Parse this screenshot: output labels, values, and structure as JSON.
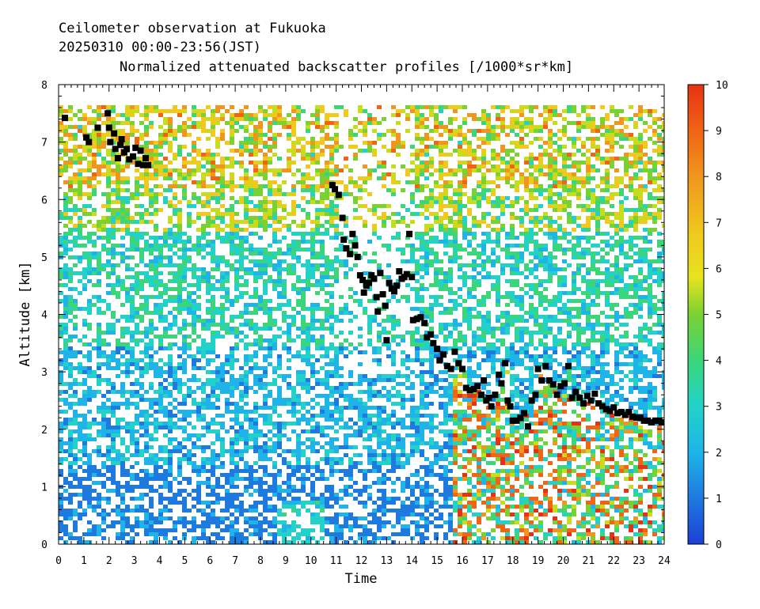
{
  "chart_data": {
    "type": "heatmap",
    "title_line1": "Ceilometer observation at Fukuoka",
    "title_line2": "20250310  00:00-23:56(JST)",
    "title_line3": "Normalized attenuated backscatter profiles [/1000*sr*km]",
    "xlabel": "Time",
    "ylabel": "Altitude [km]",
    "xlim": [
      0,
      24
    ],
    "ylim": [
      0,
      8
    ],
    "x_ticks": [
      "0",
      "1",
      "2",
      "3",
      "4",
      "5",
      "6",
      "7",
      "8",
      "9",
      "10",
      "11",
      "12",
      "13",
      "14",
      "15",
      "16",
      "17",
      "18",
      "19",
      "20",
      "21",
      "22",
      "23",
      "24"
    ],
    "y_ticks": [
      "0",
      "1",
      "2",
      "3",
      "4",
      "5",
      "6",
      "7",
      "8"
    ],
    "colorbar": {
      "range": [
        0,
        10
      ],
      "ticks": [
        "0",
        "1",
        "2",
        "3",
        "4",
        "5",
        "6",
        "7",
        "8",
        "9",
        "10"
      ],
      "colors": [
        "#1a3fd6",
        "#1f7ae0",
        "#1eb4e8",
        "#22d2c8",
        "#3cd67a",
        "#7ad232",
        "#c8dc1e",
        "#f0c81e",
        "#f0961e",
        "#f06414",
        "#e63214"
      ]
    },
    "data_top_altitude_km": 7.65,
    "cloud_base_series": {
      "name": "cloud base",
      "color": "#000000",
      "points": [
        [
          0.25,
          7.42
        ],
        [
          1.1,
          7.08
        ],
        [
          1.2,
          7.0
        ],
        [
          1.55,
          7.25
        ],
        [
          1.95,
          7.5
        ],
        [
          2.0,
          7.25
        ],
        [
          2.05,
          7.0
        ],
        [
          2.2,
          7.15
        ],
        [
          2.25,
          6.88
        ],
        [
          2.35,
          6.72
        ],
        [
          2.45,
          6.95
        ],
        [
          2.5,
          7.05
        ],
        [
          2.6,
          6.82
        ],
        [
          2.7,
          6.88
        ],
        [
          2.8,
          6.7
        ],
        [
          2.95,
          6.75
        ],
        [
          3.05,
          6.9
        ],
        [
          3.15,
          6.62
        ],
        [
          3.25,
          6.85
        ],
        [
          3.35,
          6.6
        ],
        [
          3.45,
          6.72
        ],
        [
          3.55,
          6.6
        ],
        [
          10.85,
          6.25
        ],
        [
          10.95,
          6.18
        ],
        [
          11.1,
          6.08
        ],
        [
          11.25,
          5.68
        ],
        [
          11.3,
          5.3
        ],
        [
          11.4,
          5.15
        ],
        [
          11.55,
          5.05
        ],
        [
          11.65,
          5.4
        ],
        [
          11.75,
          5.2
        ],
        [
          11.85,
          5.0
        ],
        [
          11.95,
          4.68
        ],
        [
          12.05,
          4.6
        ],
        [
          12.1,
          4.38
        ],
        [
          12.2,
          4.5
        ],
        [
          12.3,
          4.55
        ],
        [
          12.4,
          4.68
        ],
        [
          12.5,
          4.62
        ],
        [
          12.6,
          4.3
        ],
        [
          12.65,
          4.05
        ],
        [
          12.75,
          4.72
        ],
        [
          12.85,
          4.35
        ],
        [
          12.95,
          4.15
        ],
        [
          13.0,
          3.55
        ],
        [
          13.1,
          4.55
        ],
        [
          13.2,
          4.45
        ],
        [
          13.3,
          4.4
        ],
        [
          13.4,
          4.5
        ],
        [
          13.5,
          4.75
        ],
        [
          13.6,
          4.62
        ],
        [
          13.7,
          4.65
        ],
        [
          13.8,
          4.7
        ],
        [
          13.9,
          5.4
        ],
        [
          14.0,
          4.65
        ],
        [
          14.05,
          3.9
        ],
        [
          14.2,
          3.92
        ],
        [
          14.35,
          3.95
        ],
        [
          14.5,
          3.85
        ],
        [
          14.6,
          3.6
        ],
        [
          14.75,
          3.65
        ],
        [
          14.85,
          3.5
        ],
        [
          15.0,
          3.4
        ],
        [
          15.1,
          3.2
        ],
        [
          15.25,
          3.3
        ],
        [
          15.4,
          3.1
        ],
        [
          15.55,
          3.05
        ],
        [
          15.7,
          3.35
        ],
        [
          15.85,
          3.15
        ],
        [
          16.0,
          3.05
        ],
        [
          16.15,
          2.72
        ],
        [
          16.3,
          2.68
        ],
        [
          16.45,
          2.7
        ],
        [
          16.6,
          2.75
        ],
        [
          16.75,
          2.6
        ],
        [
          16.85,
          2.85
        ],
        [
          16.95,
          2.5
        ],
        [
          17.05,
          2.55
        ],
        [
          17.15,
          2.4
        ],
        [
          17.3,
          2.6
        ],
        [
          17.45,
          2.95
        ],
        [
          17.55,
          2.8
        ],
        [
          17.7,
          3.15
        ],
        [
          17.8,
          2.5
        ],
        [
          17.9,
          2.4
        ],
        [
          18.0,
          2.15
        ],
        [
          18.15,
          2.15
        ],
        [
          18.3,
          2.2
        ],
        [
          18.45,
          2.28
        ],
        [
          18.6,
          2.05
        ],
        [
          18.75,
          2.5
        ],
        [
          18.9,
          2.6
        ],
        [
          19.0,
          3.05
        ],
        [
          19.15,
          2.85
        ],
        [
          19.3,
          3.1
        ],
        [
          19.45,
          2.85
        ],
        [
          19.6,
          2.78
        ],
        [
          19.75,
          2.6
        ],
        [
          19.9,
          2.75
        ],
        [
          20.05,
          2.8
        ],
        [
          20.2,
          3.1
        ],
        [
          20.35,
          2.55
        ],
        [
          20.5,
          2.65
        ],
        [
          20.65,
          2.55
        ],
        [
          20.8,
          2.45
        ],
        [
          20.95,
          2.58
        ],
        [
          21.1,
          2.5
        ],
        [
          21.25,
          2.62
        ],
        [
          21.4,
          2.45
        ],
        [
          21.55,
          2.4
        ],
        [
          21.7,
          2.35
        ],
        [
          21.85,
          2.32
        ],
        [
          22.0,
          2.38
        ],
        [
          22.15,
          2.28
        ],
        [
          22.3,
          2.3
        ],
        [
          22.45,
          2.25
        ],
        [
          22.6,
          2.3
        ],
        [
          22.75,
          2.22
        ],
        [
          22.9,
          2.2
        ],
        [
          23.05,
          2.2
        ],
        [
          23.2,
          2.15
        ],
        [
          23.35,
          2.15
        ],
        [
          23.5,
          2.12
        ],
        [
          23.65,
          2.15
        ],
        [
          23.8,
          2.15
        ],
        [
          23.9,
          2.12
        ]
      ]
    }
  }
}
